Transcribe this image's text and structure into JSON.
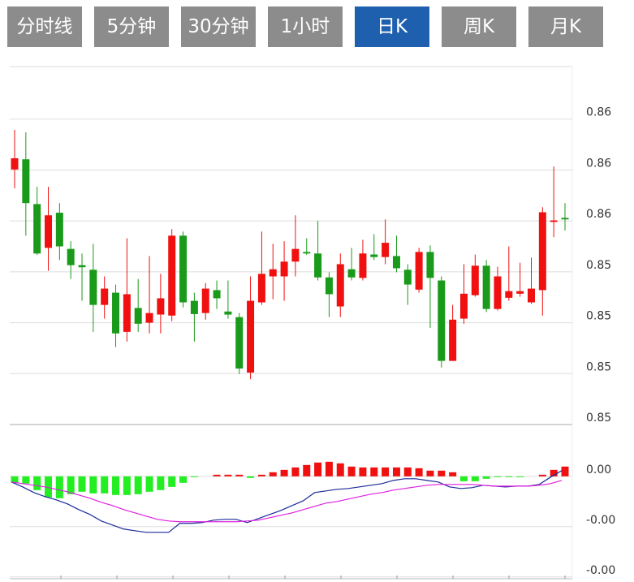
{
  "tabs": {
    "items": [
      "分时线",
      "5分钟",
      "30分钟",
      "1小时",
      "日K",
      "周K",
      "月K"
    ],
    "active": 4
  },
  "chart_data": [
    {
      "type": "candlestick",
      "up_color": "#f01010",
      "down_color": "#1a9a1a",
      "grid": true,
      "ylim": [
        0.8518,
        0.8588
      ],
      "yticks": [
        {
          "value": 0.8578,
          "label": "0.86"
        },
        {
          "value": 0.8568,
          "label": "0.86"
        },
        {
          "value": 0.8558,
          "label": "0.86"
        },
        {
          "value": 0.8548,
          "label": "0.85"
        },
        {
          "value": 0.8538,
          "label": "0.85"
        },
        {
          "value": 0.8528,
          "label": "0.85"
        },
        {
          "value": 0.8518,
          "label": "0.85"
        }
      ],
      "open": [
        0.85681,
        0.85701,
        0.85613,
        0.85527,
        0.85596,
        0.85525,
        0.85493,
        0.85484,
        0.85415,
        0.85439,
        0.85362,
        0.85409,
        0.8538,
        0.85396,
        0.85394,
        0.85551,
        0.85423,
        0.85399,
        0.85444,
        0.85402,
        0.85391,
        0.85282,
        0.8542,
        0.85471,
        0.85471,
        0.855,
        0.85519,
        0.85516,
        0.85469,
        0.85412,
        0.85485,
        0.85468,
        0.85514,
        0.85509,
        0.85511,
        0.85484,
        0.85445,
        0.85519,
        0.85463,
        0.85305,
        0.85388,
        0.85434,
        0.85492,
        0.85407,
        0.85429,
        0.85437,
        0.8542,
        0.85444,
        0.85578,
        0.85586
      ],
      "high": [
        0.85759,
        0.85754,
        0.85647,
        0.85647,
        0.85615,
        0.8554,
        0.85516,
        0.85535,
        0.85471,
        0.85455,
        0.85546,
        0.85466,
        0.85511,
        0.85476,
        0.85564,
        0.85559,
        0.85439,
        0.85458,
        0.85463,
        0.85463,
        0.85399,
        0.85471,
        0.85559,
        0.85535,
        0.8554,
        0.85591,
        0.85546,
        0.8558,
        0.85479,
        0.85516,
        0.85527,
        0.85543,
        0.85554,
        0.85583,
        0.85551,
        0.85495,
        0.85527,
        0.85532,
        0.85471,
        0.85415,
        0.85495,
        0.85514,
        0.85503,
        0.8549,
        0.8553,
        0.85498,
        0.85508,
        0.85607,
        0.85687,
        0.85615
      ],
      "low": [
        0.85644,
        0.85551,
        0.85513,
        0.85482,
        0.85503,
        0.85466,
        0.85423,
        0.85362,
        0.85388,
        0.85332,
        0.85343,
        0.85362,
        0.85359,
        0.85359,
        0.85383,
        0.8541,
        0.85343,
        0.85386,
        0.85407,
        0.85388,
        0.85279,
        0.85269,
        0.85415,
        0.85426,
        0.85423,
        0.85471,
        0.85513,
        0.85463,
        0.85391,
        0.85391,
        0.85463,
        0.85463,
        0.85503,
        0.85495,
        0.85479,
        0.85415,
        0.85439,
        0.8537,
        0.85292,
        0.85305,
        0.85378,
        0.85431,
        0.85401,
        0.85404,
        0.85423,
        0.85431,
        0.85417,
        0.85394,
        0.85548,
        0.85561
      ],
      "close": [
        0.85703,
        0.85615,
        0.85516,
        0.85591,
        0.8553,
        0.85493,
        0.85489,
        0.85415,
        0.85447,
        0.85359,
        0.85436,
        0.85378,
        0.85399,
        0.85428,
        0.85551,
        0.8542,
        0.85397,
        0.85447,
        0.85428,
        0.85396,
        0.8529,
        0.85423,
        0.85476,
        0.85485,
        0.855,
        0.85525,
        0.85516,
        0.85469,
        0.85436,
        0.85495,
        0.85469,
        0.85516,
        0.85509,
        0.85537,
        0.85487,
        0.85455,
        0.85519,
        0.85468,
        0.85305,
        0.85386,
        0.85437,
        0.85492,
        0.85407,
        0.85471,
        0.85442,
        0.85442,
        0.85447,
        0.85597,
        0.85581,
        0.85583
      ]
    },
    {
      "type": "macd",
      "up_color": "#f01010",
      "down_color": "#22ee22",
      "grid": true,
      "ylim": [
        -0.00202,
        0.00103
      ],
      "yticks": [
        {
          "value": 0,
          "label": "0.00"
        },
        {
          "value": -0.001,
          "label": "-0.00"
        },
        {
          "value": -0.002,
          "label": "-0.00"
        }
      ],
      "bars": [
        -0.000129,
        -0.000145,
        -0.000274,
        -0.000419,
        -0.000435,
        -0.000355,
        -0.000306,
        -0.000339,
        -0.000339,
        -0.000371,
        -0.000371,
        -0.000355,
        -0.000306,
        -0.000274,
        -0.00021,
        -0.000129,
        -1.6e-05,
        0,
        3.2e-05,
        3.2e-05,
        3.2e-05,
        -3.2e-05,
        3.2e-05,
        8.1e-05,
        0.000129,
        0.000177,
        0.000226,
        0.000274,
        0.00029,
        0.000258,
        0.000194,
        0.000177,
        0.000177,
        0.000177,
        0.000177,
        0.000177,
        0.000161,
        0.000113,
        0.000113,
        8.1e-05,
        -9.7e-05,
        -9.7e-05,
        -4.8e-05,
        -1.6e-05,
        -1.6e-05,
        -1.6e-05,
        0,
        3.2e-05,
        0.000129,
        0.000194
      ],
      "series": [
        {
          "color": "#1a2a9a",
          "values": [
            -0.000113,
            -0.00021,
            -0.000323,
            -0.000403,
            -0.000468,
            -0.000548,
            -0.000661,
            -0.000758,
            -0.000887,
            -0.000968,
            -0.001048,
            -0.001081,
            -0.001113,
            -0.001113,
            -0.001113,
            -0.000935,
            -0.000935,
            -0.000919,
            -0.000871,
            -0.000855,
            -0.000855,
            -0.000919,
            -0.000839,
            -0.000758,
            -0.000677,
            -0.000581,
            -0.000484,
            -0.000323,
            -0.00029,
            -0.000258,
            -0.000242,
            -0.00021,
            -0.000177,
            -0.000145,
            -8.1e-05,
            -4.8e-05,
            -4.8e-05,
            -8.1e-05,
            -0.000113,
            -0.00021,
            -0.000242,
            -0.000226,
            -0.000177,
            -0.000194,
            -0.00021,
            -0.000194,
            -0.000194,
            -0.000161,
            -1.6e-05,
            0.000113
          ]
        },
        {
          "color": "#e020e0",
          "values": [
            -0.000113,
            -0.000145,
            -0.000177,
            -0.00021,
            -0.000258,
            -0.000306,
            -0.000371,
            -0.000435,
            -0.000516,
            -0.000581,
            -0.000661,
            -0.000726,
            -0.00079,
            -0.000855,
            -0.000887,
            -0.000903,
            -0.000903,
            -0.000903,
            -0.000903,
            -0.000903,
            -0.000903,
            -0.000887,
            -0.000871,
            -0.000823,
            -0.000774,
            -0.000726,
            -0.000661,
            -0.000597,
            -0.000532,
            -0.0005,
            -0.000452,
            -0.000403,
            -0.000355,
            -0.000323,
            -0.000274,
            -0.000242,
            -0.00021,
            -0.000177,
            -0.000161,
            -0.000161,
            -0.000161,
            -0.000161,
            -0.000177,
            -0.000194,
            -0.000194,
            -0.000194,
            -0.000194,
            -0.000177,
            -0.000145,
            -8.1e-05
          ]
        }
      ]
    }
  ]
}
